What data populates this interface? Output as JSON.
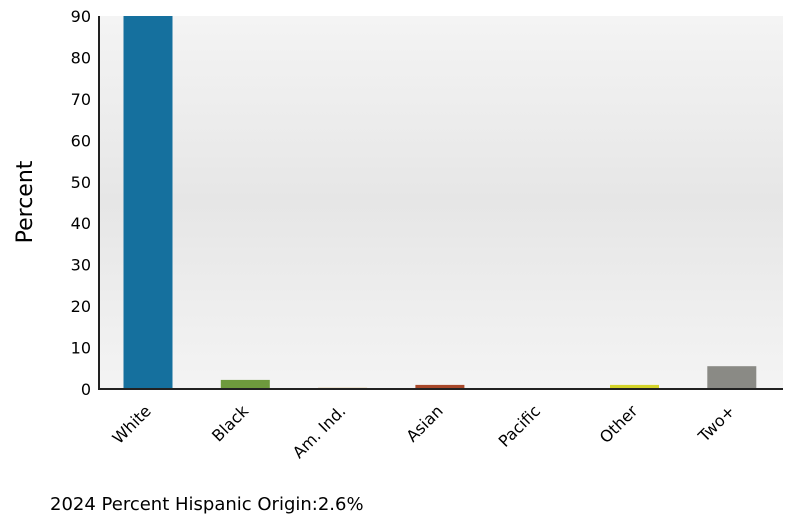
{
  "chart_data": {
    "type": "bar",
    "categories": [
      "White",
      "Black",
      "Am. Ind.",
      "Asian",
      "Pacific",
      "Other",
      "Two+"
    ],
    "values": [
      90.0,
      2.2,
      0.3,
      1.0,
      0.1,
      1.0,
      5.5
    ],
    "colors": [
      "#15709e",
      "#6e9a3d",
      "#c8a050",
      "#a8482a",
      "#999999",
      "#d4d42a",
      "#8a8a85"
    ],
    "ylabel": "Percent",
    "xlabel": "",
    "ylim": [
      0,
      90
    ],
    "yticks": [
      0,
      10,
      20,
      30,
      40,
      50,
      60,
      70,
      80,
      90
    ],
    "grid": false,
    "background": "#ececec"
  },
  "footnote": {
    "text": "2024 Percent Hispanic Origin:2.6%"
  }
}
